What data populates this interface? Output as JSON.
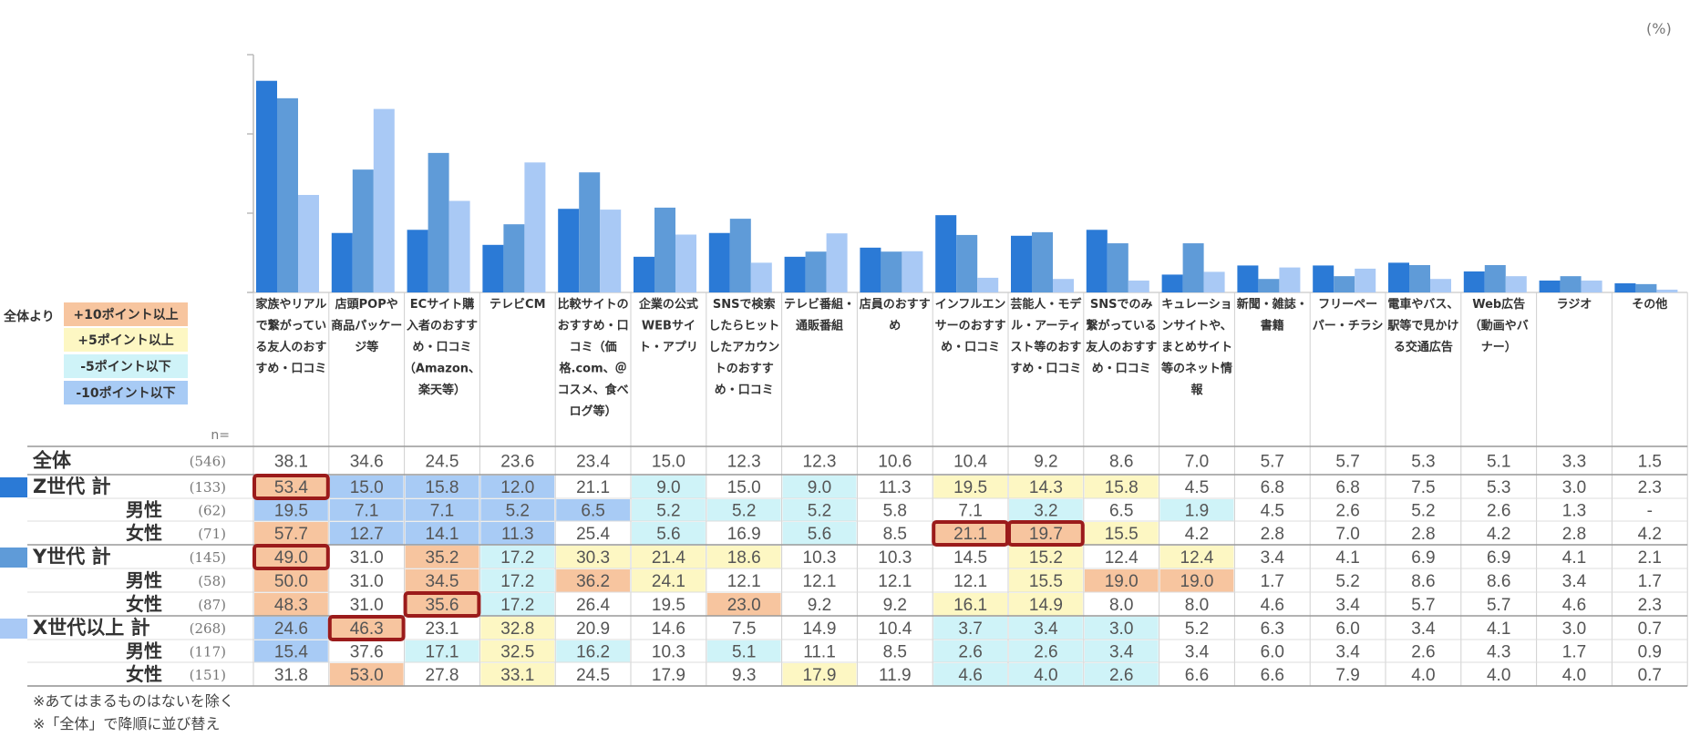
{
  "unit_label": "(%)",
  "legend": {
    "title": "全体より",
    "items": [
      {
        "label": "+10ポイント以上",
        "color": "#f7c59f"
      },
      {
        "label": "+5ポイント以上",
        "color": "#fdf7c3"
      },
      {
        "label": "-5ポイント以下",
        "color": "#cff3f8"
      },
      {
        "label": "-10ポイント以下",
        "color": "#a8cbf5"
      }
    ]
  },
  "notes": [
    "※あてはまるものはないを除く",
    "※「全体」で降順に並び替え"
  ],
  "chart_data": {
    "type": "bar",
    "ylim": [
      0,
      60
    ],
    "n_label": "n=",
    "categories": [
      "家族やリアルで繋がっている友人のおすすめ・口コミ",
      "店頭POPや商品パッケージ等",
      "ECサイト購入者のおすすめ・口コミ（Amazon、楽天等）",
      "テレビCM",
      "比較サイトのおすすめ・口コミ（価格.com、＠コスメ、食べログ等）",
      "企業の公式WEBサイト・アプリ",
      "SNSで検索したらヒットしたアカウントのおすすめ・口コミ",
      "テレビ番組・通販番組",
      "店員のおすすめ",
      "インフルエンサーのおすすめ・口コミ",
      "芸能人・モデル・アーティスト等のおすすめ・口コミ",
      "SNSでのみ繋がっている友人のおすすめ・口コミ",
      "キュレーションサイトや、まとめサイト等のネット情報",
      "新聞・雑誌・書籍",
      "フリーペーパー・チラシ",
      "電車やバス、駅等で見かける交通広告",
      "Web広告（動画やバナー）",
      "ラジオ",
      "その他"
    ],
    "header_lines": [
      [
        "家族やリアル",
        "で繋がってい",
        "る友人のおす",
        "すめ・口コミ"
      ],
      [
        "店頭POPや",
        "商品パッケー",
        "ジ等"
      ],
      [
        "ECサイト購",
        "入者のおすす",
        "め・口コミ",
        "（Amazon、",
        "楽天等）"
      ],
      [
        "テレビCM"
      ],
      [
        "比較サイトの",
        "おすすめ・口",
        "コミ（価",
        "格.com、＠",
        "コスメ、食べ",
        "ログ等）"
      ],
      [
        "企業の公式",
        "WEBサイ",
        "ト・アプリ"
      ],
      [
        "SNSで検索",
        "したらヒット",
        "したアカウン",
        "トのおすす",
        "め・口コミ"
      ],
      [
        "テレビ番組・",
        "通販番組"
      ],
      [
        "店員のおすす",
        "め"
      ],
      [
        "インフルエン",
        "サーのおすす",
        "め・口コミ"
      ],
      [
        "芸能人・モデ",
        "ル・アーティ",
        "スト等のおす",
        "すめ・口コミ"
      ],
      [
        "SNSでのみ",
        "繋がっている",
        "友人のおすす",
        "め・口コミ"
      ],
      [
        "キュレーショ",
        "ンサイトや、",
        "まとめサイト",
        "等のネット情",
        "報"
      ],
      [
        "新聞・雑誌・",
        "書籍"
      ],
      [
        "フリーペー",
        "パー・チラシ"
      ],
      [
        "電車やバス、",
        "駅等で見かけ",
        "る交通広告"
      ],
      [
        "Web広告",
        "（動画やバ",
        "ナー）"
      ],
      [
        "ラジオ"
      ],
      [
        "その他"
      ]
    ],
    "series": [
      {
        "name": "Z世代 計",
        "color": "#2b7ad6",
        "values": [
          53.4,
          15.0,
          15.8,
          12.0,
          21.1,
          9.0,
          15.0,
          9.0,
          11.3,
          19.5,
          14.3,
          15.8,
          4.5,
          6.8,
          6.8,
          7.5,
          5.3,
          3.0,
          2.3
        ]
      },
      {
        "name": "Y世代 計",
        "color": "#5f9bd8",
        "values": [
          49.0,
          31.0,
          35.2,
          17.2,
          30.3,
          21.4,
          18.6,
          10.3,
          10.3,
          14.5,
          15.2,
          12.4,
          12.4,
          3.4,
          4.1,
          6.9,
          6.9,
          4.1,
          2.1
        ]
      },
      {
        "name": "X世代以上 計",
        "color": "#a9c9f5",
        "values": [
          24.6,
          46.3,
          23.1,
          32.8,
          20.9,
          14.6,
          7.5,
          14.9,
          10.4,
          3.7,
          3.4,
          3.0,
          5.2,
          6.3,
          6.0,
          3.4,
          4.1,
          3.0,
          0.7
        ]
      }
    ],
    "rows": [
      {
        "label": "全体",
        "n": "(546)",
        "level": "total",
        "swatch": null,
        "values": [
          "38.1",
          "34.6",
          "24.5",
          "23.6",
          "23.4",
          "15.0",
          "12.3",
          "12.3",
          "10.6",
          "10.4",
          "9.2",
          "8.6",
          "7.0",
          "5.7",
          "5.7",
          "5.3",
          "5.1",
          "3.3",
          "1.5"
        ],
        "colors": [
          "",
          "",
          "",
          "",
          "",
          "",
          "",
          "",
          "",
          "",
          "",
          "",
          "",
          "",
          "",
          "",
          "",
          "",
          ""
        ]
      },
      {
        "label": "Z世代 計",
        "n": "(133)",
        "level": "group",
        "swatch": "#2b7ad6",
        "values": [
          "53.4",
          "15.0",
          "15.8",
          "12.0",
          "21.1",
          "9.0",
          "15.0",
          "9.0",
          "11.3",
          "19.5",
          "14.3",
          "15.8",
          "4.5",
          "6.8",
          "6.8",
          "7.5",
          "5.3",
          "3.0",
          "2.3"
        ],
        "colors": [
          "o",
          "b",
          "b",
          "b",
          "",
          "c",
          "",
          "c",
          "",
          "y",
          "y",
          "y",
          "",
          "",
          "",
          "",
          "",
          "",
          ""
        ]
      },
      {
        "label": "男性",
        "n": "(62)",
        "level": "sub",
        "swatch": null,
        "values": [
          "19.5",
          "7.1",
          "7.1",
          "5.2",
          "6.5",
          "5.2",
          "5.2",
          "5.2",
          "5.8",
          "7.1",
          "3.2",
          "6.5",
          "1.9",
          "4.5",
          "2.6",
          "5.2",
          "2.6",
          "1.3",
          "-"
        ],
        "colors": [
          "b",
          "b",
          "b",
          "b",
          "b",
          "c",
          "c",
          "c",
          "",
          "",
          "c",
          "",
          "c",
          "",
          "",
          "",
          "",
          "",
          ""
        ]
      },
      {
        "label": "女性",
        "n": "(71)",
        "level": "sub",
        "swatch": null,
        "values": [
          "57.7",
          "12.7",
          "14.1",
          "11.3",
          "25.4",
          "5.6",
          "16.9",
          "5.6",
          "8.5",
          "21.1",
          "19.7",
          "15.5",
          "4.2",
          "2.8",
          "7.0",
          "2.8",
          "4.2",
          "2.8",
          "4.2"
        ],
        "colors": [
          "o",
          "b",
          "b",
          "b",
          "",
          "c",
          "",
          "c",
          "",
          "o",
          "o",
          "y",
          "",
          "",
          "",
          "",
          "",
          "",
          ""
        ]
      },
      {
        "label": "Y世代 計",
        "n": "(145)",
        "level": "group",
        "swatch": "#5f9bd8",
        "values": [
          "49.0",
          "31.0",
          "35.2",
          "17.2",
          "30.3",
          "21.4",
          "18.6",
          "10.3",
          "10.3",
          "14.5",
          "15.2",
          "12.4",
          "12.4",
          "3.4",
          "4.1",
          "6.9",
          "6.9",
          "4.1",
          "2.1"
        ],
        "colors": [
          "o",
          "",
          "o",
          "c",
          "y",
          "y",
          "y",
          "",
          "",
          "",
          "y",
          "",
          "y",
          "",
          "",
          "",
          "",
          "",
          ""
        ]
      },
      {
        "label": "男性",
        "n": "(58)",
        "level": "sub",
        "swatch": null,
        "values": [
          "50.0",
          "31.0",
          "34.5",
          "17.2",
          "36.2",
          "24.1",
          "12.1",
          "12.1",
          "12.1",
          "12.1",
          "15.5",
          "19.0",
          "19.0",
          "1.7",
          "5.2",
          "8.6",
          "8.6",
          "3.4",
          "1.7"
        ],
        "colors": [
          "o",
          "",
          "o",
          "c",
          "o",
          "y",
          "",
          "",
          "",
          "",
          "y",
          "o",
          "o",
          "",
          "",
          "",
          "",
          "",
          ""
        ]
      },
      {
        "label": "女性",
        "n": "(87)",
        "level": "sub",
        "swatch": null,
        "values": [
          "48.3",
          "31.0",
          "35.6",
          "17.2",
          "26.4",
          "19.5",
          "23.0",
          "9.2",
          "9.2",
          "16.1",
          "14.9",
          "8.0",
          "8.0",
          "4.6",
          "3.4",
          "5.7",
          "5.7",
          "4.6",
          "2.3"
        ],
        "colors": [
          "o",
          "",
          "o",
          "c",
          "",
          "",
          "o",
          "",
          "",
          "y",
          "y",
          "",
          "",
          "",
          "",
          "",
          "",
          "",
          ""
        ]
      },
      {
        "label": "X世代以上 計",
        "n": "(268)",
        "level": "group",
        "swatch": "#a9c9f5",
        "values": [
          "24.6",
          "46.3",
          "23.1",
          "32.8",
          "20.9",
          "14.6",
          "7.5",
          "14.9",
          "10.4",
          "3.7",
          "3.4",
          "3.0",
          "5.2",
          "6.3",
          "6.0",
          "3.4",
          "4.1",
          "3.0",
          "0.7"
        ],
        "colors": [
          "b",
          "o",
          "",
          "y",
          "",
          "",
          "",
          "",
          "",
          "c",
          "c",
          "c",
          "",
          "",
          "",
          "",
          "",
          "",
          ""
        ]
      },
      {
        "label": "男性",
        "n": "(117)",
        "level": "sub",
        "swatch": null,
        "values": [
          "15.4",
          "37.6",
          "17.1",
          "32.5",
          "16.2",
          "10.3",
          "5.1",
          "11.1",
          "8.5",
          "2.6",
          "2.6",
          "3.4",
          "3.4",
          "6.0",
          "3.4",
          "2.6",
          "4.3",
          "1.7",
          "0.9"
        ],
        "colors": [
          "b",
          "",
          "c",
          "y",
          "c",
          "",
          "c",
          "",
          "",
          "c",
          "c",
          "c",
          "",
          "",
          "",
          "",
          "",
          "",
          ""
        ]
      },
      {
        "label": "女性",
        "n": "(151)",
        "level": "sub",
        "swatch": null,
        "values": [
          "31.8",
          "53.0",
          "27.8",
          "33.1",
          "24.5",
          "17.9",
          "9.3",
          "17.9",
          "11.9",
          "4.6",
          "4.0",
          "2.6",
          "6.6",
          "6.6",
          "7.9",
          "4.0",
          "4.0",
          "4.0",
          "0.7"
        ],
        "colors": [
          "",
          "o",
          "",
          "y",
          "",
          "",
          "",
          "y",
          "",
          "c",
          "c",
          "c",
          "",
          "",
          "",
          "",
          "",
          "",
          ""
        ]
      }
    ],
    "highlights": [
      [
        1,
        0
      ],
      [
        3,
        9
      ],
      [
        3,
        10
      ],
      [
        4,
        0
      ],
      [
        6,
        2
      ],
      [
        7,
        1
      ]
    ]
  }
}
